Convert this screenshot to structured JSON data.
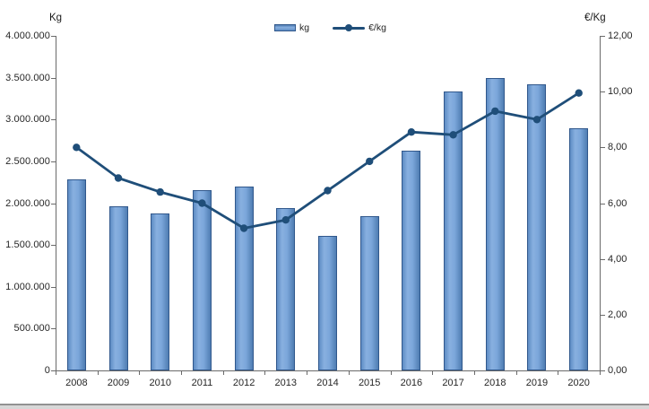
{
  "chart_data": {
    "type": "combo",
    "title": "",
    "categories": [
      "2008",
      "2009",
      "2010",
      "2011",
      "2012",
      "2013",
      "2014",
      "2015",
      "2016",
      "2017",
      "2018",
      "2019",
      "2020"
    ],
    "series": [
      {
        "name": "kg",
        "type": "bar",
        "axis": "left",
        "values": [
          2280000,
          1960000,
          1880000,
          2160000,
          2200000,
          1940000,
          1610000,
          1840000,
          2630000,
          3340000,
          3500000,
          3420000,
          2900000
        ]
      },
      {
        "name": "€/kg",
        "type": "line",
        "axis": "right",
        "values": [
          8.0,
          6.9,
          6.4,
          6.0,
          5.1,
          5.4,
          6.45,
          7.5,
          8.55,
          8.45,
          9.3,
          9.0,
          9.95
        ]
      }
    ],
    "left_axis": {
      "title": "Kg",
      "min": 0,
      "max": 4000000,
      "tick_interval": 500000,
      "tick_labels": [
        "4.000.000",
        "3.500.000",
        "3.000.000",
        "2.500.000",
        "2.000.000",
        "1.500.000",
        "1.000.000",
        "500.000",
        "0"
      ]
    },
    "right_axis": {
      "title": "€/Kg",
      "min": 0,
      "max": 12,
      "tick_interval": 2,
      "tick_labels": [
        "12,00",
        "10,00",
        "8,00",
        "6,00",
        "4,00",
        "2,00",
        "0,00"
      ]
    },
    "legend": {
      "position": "top",
      "items": [
        {
          "label": "kg",
          "marker": "bar"
        },
        {
          "label": "€/kg",
          "marker": "line"
        }
      ]
    },
    "grid": false,
    "colors": {
      "bar_fill": "#7aa5d9",
      "bar_fill_light": "#88b0e0",
      "bar_border": "#31588c",
      "line": "#1f4e79",
      "axis": "#6a6a6a",
      "text": "#262626"
    }
  }
}
